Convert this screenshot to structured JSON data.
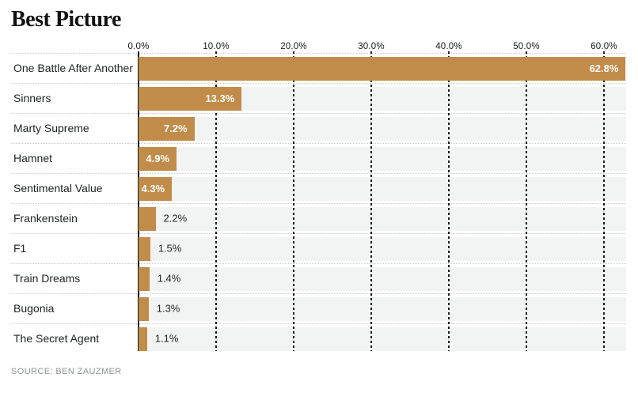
{
  "title": "Best Picture",
  "source": "SOURCE: BEN ZAUZMER",
  "chart_data": {
    "type": "bar",
    "orientation": "horizontal",
    "title": "Best Picture",
    "categories": [
      "One Battle After Another",
      "Sinners",
      "Marty Supreme",
      "Hamnet",
      "Sentimental Value",
      "Frankenstein",
      "F1",
      "Train Dreams",
      "Bugonia",
      "The Secret Agent"
    ],
    "values": [
      62.8,
      13.3,
      7.2,
      4.9,
      4.3,
      2.2,
      1.5,
      1.4,
      1.3,
      1.1
    ],
    "value_labels": [
      "62.8%",
      "13.3%",
      "7.2%",
      "4.9%",
      "4.3%",
      "2.2%",
      "1.5%",
      "1.4%",
      "1.3%",
      "1.1%"
    ],
    "x_tick_labels": [
      "0.0%",
      "10.0%",
      "20.0%",
      "30.0%",
      "40.0%",
      "50.0%",
      "60.0%"
    ],
    "x_tick_values": [
      0,
      10,
      20,
      30,
      40,
      50,
      60
    ],
    "xlim": [
      0,
      62.9
    ],
    "inside_label_threshold": 4.0,
    "grid": "vertical-dashed",
    "legend": "none",
    "colors": {
      "bar": "#c18b49",
      "row_band": "#f2f4f3",
      "gridline": "#1a1a1a",
      "separator": "#c9cecc",
      "value_inside": "#ffffff",
      "value_outside": "#232626",
      "category_label": "#1f2323",
      "tick_label": "#161a1a",
      "title": "#121212",
      "source": "#8f9595"
    }
  }
}
